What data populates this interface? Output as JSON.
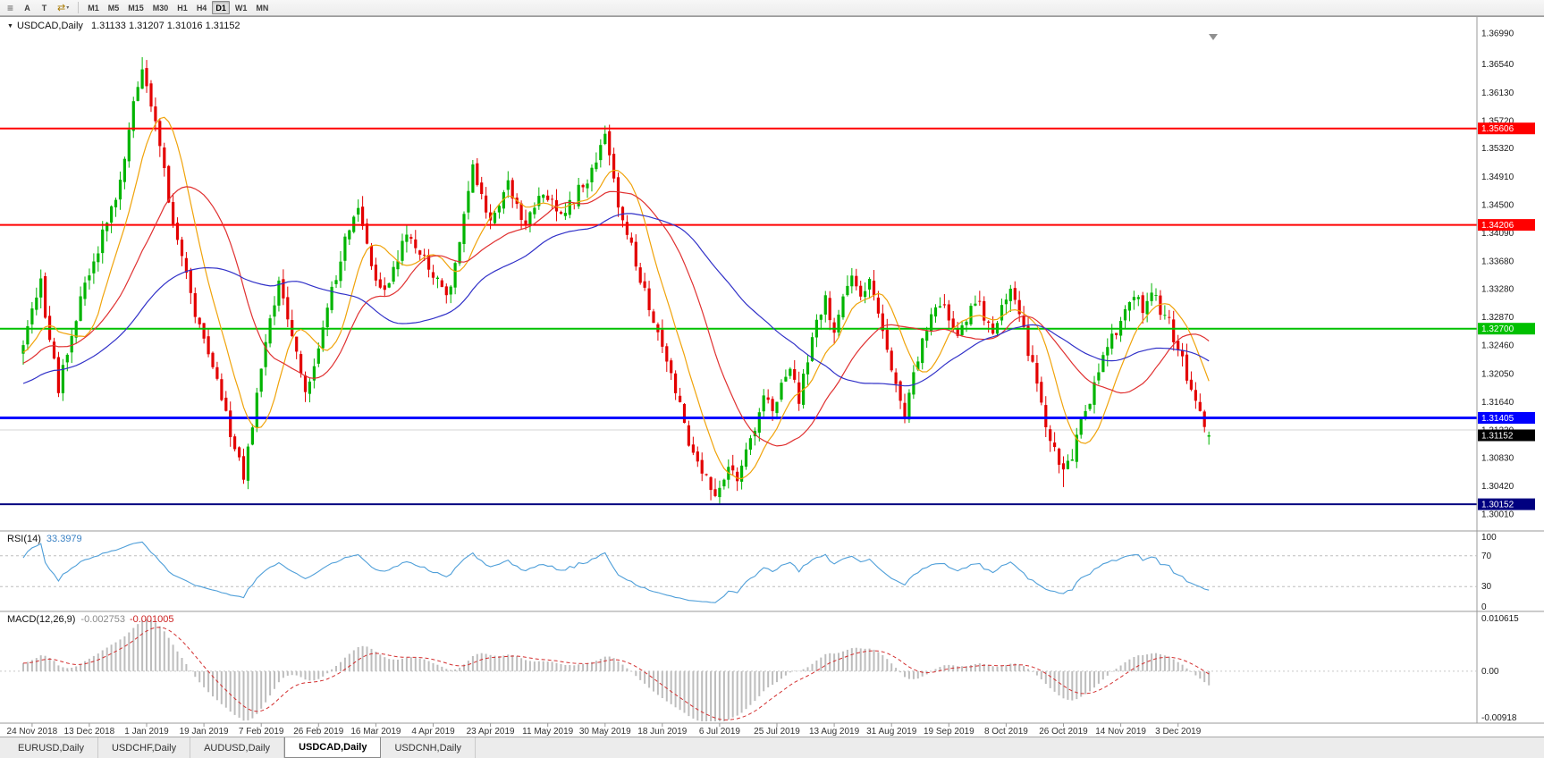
{
  "toolbar": {
    "menu_icon_glyph": "≡",
    "buttons": [
      {
        "label": "A"
      },
      {
        "label": "T"
      }
    ],
    "mode_icon_glyph": "⇄",
    "mode_dropdown_glyph": "▾",
    "timeframes": [
      "M1",
      "M5",
      "M15",
      "M30",
      "H1",
      "H4",
      "D1",
      "W1",
      "MN"
    ],
    "active_timeframe": "D1"
  },
  "chart": {
    "symbol_label": "USDCAD,Daily",
    "ohlc_label": "1.31133 1.31207 1.31016 1.31152",
    "symbol_dropdown_glyph": "▼",
    "price_ticks": [
      "1.36990",
      "1.36540",
      "1.36130",
      "1.35720",
      "1.35320",
      "1.34910",
      "1.34500",
      "1.34090",
      "1.33680",
      "1.33280",
      "1.32870",
      "1.32460",
      "1.32050",
      "1.31640",
      "1.31230",
      "1.30830",
      "1.30420",
      "1.30010"
    ],
    "grid_line_price": 1.3123,
    "hlines": [
      {
        "price": 1.35606,
        "label": "1.35606",
        "color": "#ff0000",
        "width": 2
      },
      {
        "price": 1.34206,
        "label": "1.34206",
        "color": "#ff0000",
        "width": 2
      },
      {
        "price": 1.327,
        "label": "1.32700",
        "color": "#00c000",
        "width": 2
      },
      {
        "price": 1.31405,
        "label": "1.31405",
        "color": "#0000ff",
        "width": 3
      },
      {
        "price": 1.30152,
        "label": "1.30152",
        "color": "#000080",
        "width": 2
      }
    ],
    "current_price": {
      "value": 1.31152,
      "label": "1.31152",
      "box_color": "#000000"
    },
    "colors": {
      "bull": "#00b400",
      "bear": "#e30000",
      "ma_fast": "#f0a30a",
      "ma_mid": "#e03131",
      "ma_slow": "#3131c8",
      "rsi": "#4f9fd9",
      "macd_hist": "#bdbdbd",
      "macd_signal": "#d32f2f",
      "grid": "#d4d4d4"
    }
  },
  "rsi": {
    "label": "RSI(14)",
    "value": "33.3979",
    "ticks": [
      "100",
      "70",
      "30",
      "0"
    ],
    "level_lines": [
      70,
      30
    ]
  },
  "macd": {
    "label": "MACD(12,26,9)",
    "value_main": "-0.002753",
    "value_signal": "-0.001005",
    "ticks": [
      "0.010615",
      "0.00",
      "-0.00918"
    ]
  },
  "x_axis": {
    "dates": [
      "24 Nov 2018",
      "13 Dec 2018",
      "1 Jan 2019",
      "19 Jan 2019",
      "7 Feb 2019",
      "26 Feb 2019",
      "16 Mar 2019",
      "4 Apr 2019",
      "23 Apr 2019",
      "11 May 2019",
      "30 May 2019",
      "18 Jun 2019",
      "6 Jul 2019",
      "25 Jul 2019",
      "13 Aug 2019",
      "31 Aug 2019",
      "19 Sep 2019",
      "8 Oct 2019",
      "26 Oct 2019",
      "14 Nov 2019",
      "3 Dec 2019"
    ],
    "label_start_index": 2,
    "label_step": 13
  },
  "tabs": [
    {
      "label": "EURUSD,Daily",
      "active": false
    },
    {
      "label": "USDCHF,Daily",
      "active": false
    },
    {
      "label": "AUDUSD,Daily",
      "active": false
    },
    {
      "label": "USDCAD,Daily",
      "active": true
    },
    {
      "label": "USDCNH,Daily",
      "active": false
    }
  ],
  "chart_data": {
    "type": "candlestick",
    "symbol": "USDCAD",
    "timeframe": "D1",
    "visible_bars": 270,
    "price_axis_range": [
      1.3001,
      1.3699
    ],
    "ohlc_last": {
      "open": 1.31133,
      "high": 1.31207,
      "low": 1.31016,
      "close": 1.31152
    },
    "horizontal_lines": [
      1.35606,
      1.34206,
      1.327,
      1.31405,
      1.30152
    ],
    "close_path_anchors": [
      [
        -60,
        1.313
      ],
      [
        -40,
        1.316
      ],
      [
        -20,
        1.32
      ],
      [
        0,
        1.3245
      ],
      [
        2,
        1.33
      ],
      [
        4,
        1.334
      ],
      [
        6,
        1.325
      ],
      [
        8,
        1.3185
      ],
      [
        10,
        1.324
      ],
      [
        12,
        1.329
      ],
      [
        14,
        1.334
      ],
      [
        16,
        1.3365
      ],
      [
        18,
        1.341
      ],
      [
        20,
        1.344
      ],
      [
        22,
        1.348
      ],
      [
        24,
        1.356
      ],
      [
        26,
        1.363
      ],
      [
        27,
        1.3655
      ],
      [
        29,
        1.36
      ],
      [
        31,
        1.3545
      ],
      [
        33,
        1.345
      ],
      [
        35,
        1.34
      ],
      [
        37,
        1.335
      ],
      [
        39,
        1.329
      ],
      [
        41,
        1.326
      ],
      [
        43,
        1.322
      ],
      [
        45,
        1.317
      ],
      [
        47,
        1.312
      ],
      [
        49,
        1.3075
      ],
      [
        50,
        1.306
      ],
      [
        52,
        1.313
      ],
      [
        54,
        1.322
      ],
      [
        56,
        1.329
      ],
      [
        58,
        1.333
      ],
      [
        60,
        1.329
      ],
      [
        62,
        1.323
      ],
      [
        64,
        1.3175
      ],
      [
        66,
        1.321
      ],
      [
        68,
        1.328
      ],
      [
        70,
        1.333
      ],
      [
        72,
        1.337
      ],
      [
        74,
        1.342
      ],
      [
        76,
        1.344
      ],
      [
        78,
        1.339
      ],
      [
        80,
        1.334
      ],
      [
        82,
        1.332
      ],
      [
        84,
        1.3355
      ],
      [
        86,
        1.339
      ],
      [
        88,
        1.341
      ],
      [
        90,
        1.338
      ],
      [
        92,
        1.3355
      ],
      [
        94,
        1.334
      ],
      [
        96,
        1.332
      ],
      [
        98,
        1.336
      ],
      [
        100,
        1.344
      ],
      [
        102,
        1.35
      ],
      [
        104,
        1.346
      ],
      [
        106,
        1.343
      ],
      [
        108,
        1.345
      ],
      [
        110,
        1.348
      ],
      [
        112,
        1.345
      ],
      [
        114,
        1.342
      ],
      [
        116,
        1.344
      ],
      [
        118,
        1.347
      ],
      [
        120,
        1.345
      ],
      [
        122,
        1.343
      ],
      [
        124,
        1.345
      ],
      [
        126,
        1.347
      ],
      [
        128,
        1.349
      ],
      [
        130,
        1.352
      ],
      [
        132,
        1.3545
      ],
      [
        134,
        1.348
      ],
      [
        136,
        1.343
      ],
      [
        138,
        1.339
      ],
      [
        140,
        1.334
      ],
      [
        142,
        1.33
      ],
      [
        144,
        1.326
      ],
      [
        146,
        1.322
      ],
      [
        148,
        1.318
      ],
      [
        150,
        1.313
      ],
      [
        152,
        1.309
      ],
      [
        154,
        1.306
      ],
      [
        156,
        1.304
      ],
      [
        158,
        1.303
      ],
      [
        160,
        1.307
      ],
      [
        162,
        1.3045
      ],
      [
        164,
        1.309
      ],
      [
        166,
        1.313
      ],
      [
        168,
        1.317
      ],
      [
        170,
        1.3145
      ],
      [
        172,
        1.3185
      ],
      [
        174,
        1.322
      ],
      [
        176,
        1.317
      ],
      [
        178,
        1.323
      ],
      [
        180,
        1.328
      ],
      [
        182,
        1.331
      ],
      [
        184,
        1.326
      ],
      [
        186,
        1.331
      ],
      [
        188,
        1.334
      ],
      [
        190,
        1.332
      ],
      [
        192,
        1.334
      ],
      [
        194,
        1.33
      ],
      [
        196,
        1.324
      ],
      [
        198,
        1.318
      ],
      [
        200,
        1.315
      ],
      [
        202,
        1.32
      ],
      [
        204,
        1.325
      ],
      [
        206,
        1.329
      ],
      [
        208,
        1.331
      ],
      [
        210,
        1.328
      ],
      [
        212,
        1.325
      ],
      [
        214,
        1.328
      ],
      [
        216,
        1.331
      ],
      [
        218,
        1.329
      ],
      [
        220,
        1.326
      ],
      [
        222,
        1.33
      ],
      [
        224,
        1.333
      ],
      [
        226,
        1.329
      ],
      [
        228,
        1.324
      ],
      [
        230,
        1.319
      ],
      [
        232,
        1.313
      ],
      [
        234,
        1.309
      ],
      [
        236,
        1.306
      ],
      [
        238,
        1.309
      ],
      [
        240,
        1.313
      ],
      [
        242,
        1.317
      ],
      [
        244,
        1.321
      ],
      [
        246,
        1.324
      ],
      [
        248,
        1.327
      ],
      [
        250,
        1.33
      ],
      [
        252,
        1.332
      ],
      [
        254,
        1.33
      ],
      [
        256,
        1.332
      ],
      [
        258,
        1.33
      ],
      [
        260,
        1.328
      ],
      [
        262,
        1.324
      ],
      [
        264,
        1.32
      ],
      [
        266,
        1.317
      ],
      [
        268,
        1.3135
      ],
      [
        269,
        1.31152
      ]
    ],
    "forced_extremes": {
      "27": {
        "high": 1.3664
      },
      "50": {
        "low": 1.3045
      },
      "132": {
        "high": 1.356
      },
      "158": {
        "low": 1.3016
      },
      "236": {
        "low": 1.304
      },
      "269": {
        "high": 1.31207,
        "low": 1.31016
      }
    },
    "moving_averages": [
      {
        "name": "fast",
        "period": 10,
        "color_key": "ma_fast"
      },
      {
        "name": "mid",
        "period": 24,
        "color_key": "ma_mid"
      },
      {
        "name": "slow",
        "period": 52,
        "color_key": "ma_slow"
      }
    ],
    "rsi": {
      "period": 14,
      "current": 33.3979
    },
    "macd": {
      "fast": 12,
      "slow": 26,
      "signal": 9,
      "current_main": -0.002753,
      "current_signal": -0.001005
    }
  }
}
